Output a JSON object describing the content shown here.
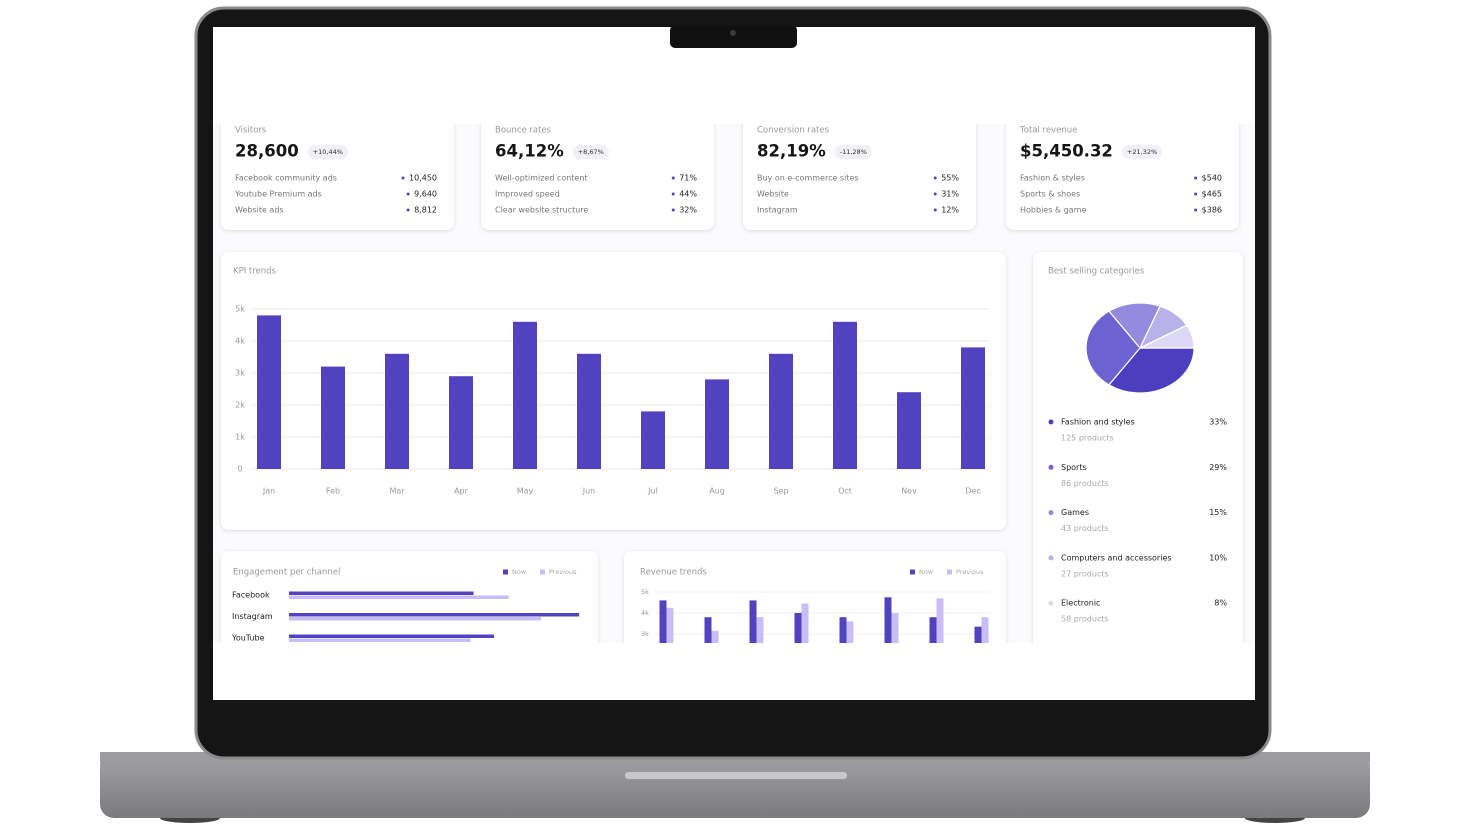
{
  "stat_cards": [
    {
      "label": "Visitors",
      "value": "28,600",
      "change": "+10,44%",
      "rows": [
        {
          "name": "Facebook community ads",
          "value": "10,450"
        },
        {
          "name": "Youtube Premium ads",
          "value": "9,640"
        },
        {
          "name": "Website ads",
          "value": "8,812"
        }
      ]
    },
    {
      "label": "Bounce rates",
      "value": "64,12%",
      "change": "+8,67%",
      "rows": [
        {
          "name": "Well-optimized content",
          "value": "71%"
        },
        {
          "name": "Improved speed",
          "value": "44%"
        },
        {
          "name": "Clear website structure",
          "value": "32%"
        }
      ]
    },
    {
      "label": "Conversion rates",
      "value": "82,19%",
      "change": "-11,28%",
      "rows": [
        {
          "name": "Buy on e-commerce sites",
          "value": "55%"
        },
        {
          "name": "Website",
          "value": "31%"
        },
        {
          "name": "Instagram",
          "value": "12%"
        }
      ]
    },
    {
      "label": "Total revenue",
      "value": "$5,450.32",
      "change": "+21,32%",
      "rows": [
        {
          "name": "Fashion & styles",
          "value": "$540"
        },
        {
          "name": "Sports & shoes",
          "value": "$465"
        },
        {
          "name": "Hobbies & game",
          "value": "$386"
        }
      ]
    }
  ],
  "chart_data": [
    {
      "type": "bar",
      "title": "KPI trends",
      "categories": [
        "Jan",
        "Feb",
        "Mar",
        "Apr",
        "May",
        "Jun",
        "Jul",
        "Aug",
        "Sep",
        "Oct",
        "Nov",
        "Dec"
      ],
      "values": [
        4.8,
        3.2,
        3.6,
        2.9,
        4.6,
        3.6,
        1.8,
        2.8,
        3.6,
        4.6,
        2.4,
        3.8
      ],
      "color": "#5143c0",
      "ylim": [
        0,
        5
      ],
      "yticks": [
        0,
        {
          "value": 1,
          "label": "1k"
        },
        {
          "value": 2,
          "label": "2k"
        },
        {
          "value": 3,
          "label": "3k"
        },
        {
          "value": 4,
          "label": "4k"
        },
        {
          "value": 5,
          "label": "5k"
        }
      ],
      "grid": true
    },
    {
      "type": "pie",
      "title": "Best selling categories",
      "categories": [
        "Fashion and styles",
        "Sports",
        "Games",
        "Computers and accessories",
        "Electronic"
      ],
      "values": [
        33,
        29,
        15,
        10,
        8
      ],
      "value_labels": [
        "33%",
        "29%",
        "15%",
        "10%",
        "8%"
      ],
      "subtitles": [
        "125 products",
        "86 products",
        "43 products",
        "27 products",
        "58 products"
      ],
      "colors": [
        "#4b3fbf",
        "#6d62d2",
        "#948bdf",
        "#b8b2ea",
        "#dcd8f5"
      ]
    },
    {
      "type": "hbar",
      "title": "Engagement per channel",
      "categories": [
        "Facebook",
        "Instagram",
        "YouTube"
      ],
      "series": [
        {
          "name": "Now",
          "color": "#5143c0",
          "values": [
            63,
            99,
            70
          ]
        },
        {
          "name": "Previous",
          "color": "#c9bdf5",
          "values": [
            75,
            86,
            62
          ]
        }
      ],
      "xlim": [
        0,
        100
      ]
    },
    {
      "type": "grouped-bar",
      "title": "Revenue trends",
      "categories": [
        null,
        null,
        null,
        null,
        null,
        null,
        null,
        null
      ],
      "series": [
        {
          "name": "Now",
          "color": "#5143c0",
          "values": [
            4.6,
            3.8,
            4.6,
            4.0,
            3.8,
            4.75,
            3.8,
            3.35
          ]
        },
        {
          "name": "Previous",
          "color": "#c9bdf5",
          "values": [
            4.25,
            3.15,
            3.8,
            4.45,
            3.6,
            4.0,
            4.7,
            3.8
          ]
        }
      ],
      "ylim": [
        2.5,
        5
      ],
      "yticks": [
        {
          "value": 5,
          "label": "5k"
        },
        {
          "value": 4,
          "label": "4k"
        },
        {
          "value": 3,
          "label": "3k"
        }
      ],
      "grid": true
    }
  ]
}
